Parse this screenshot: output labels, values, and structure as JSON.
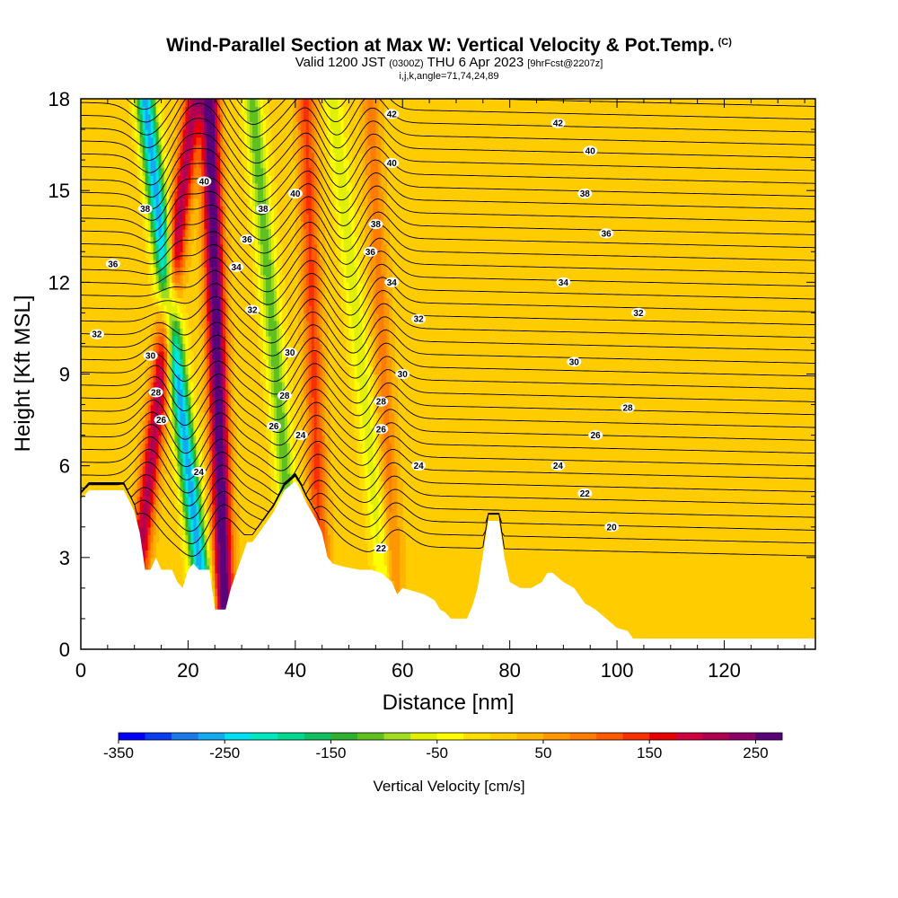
{
  "header": {
    "title": "Wind-Parallel Section at Max W: Vertical Velocity & Pot.Temp.",
    "copyright": "(C)",
    "valid_prefix": "Valid 1200 JST",
    "valid_zulu": "(0300Z)",
    "valid_date": "THU 6 Apr 2023",
    "forecast": "[9hrFcst@2207z]",
    "grid_info": "i,j,k,angle=71,74,24,89"
  },
  "chart_data": {
    "type": "heatmap",
    "xlabel": "Distance [nm]",
    "ylabel": "Height [Kft MSL]",
    "xlim": [
      0,
      137
    ],
    "ylim": [
      0,
      18
    ],
    "x_ticks": [
      0,
      20,
      40,
      60,
      80,
      100,
      120
    ],
    "y_ticks": [
      0,
      3,
      6,
      9,
      12,
      15,
      18
    ],
    "background_field": "Vertical Velocity [cm/s]",
    "background_value_cm_s": 10,
    "colorbar": {
      "label": "Vertical Velocity [cm/s]",
      "min": -350,
      "max": 275,
      "step": 25,
      "tick_labels": [
        "-350",
        "-250",
        "-150",
        "-50",
        "50",
        "150",
        "250"
      ],
      "colors": [
        "#0000ff",
        "#0b3cf0",
        "#1a78e8",
        "#12aaf0",
        "#00e0f0",
        "#00e8c0",
        "#00d890",
        "#10c060",
        "#30b030",
        "#60c020",
        "#a0dc20",
        "#e0f000",
        "#ffff00",
        "#ffe000",
        "#ffcc00",
        "#ffb400",
        "#ff9800",
        "#ff7c00",
        "#ff5a00",
        "#f83000",
        "#e80000",
        "#d00040",
        "#b00050",
        "#8c0068",
        "#5a0078"
      ]
    },
    "updraft_bands": [
      {
        "x_base": 9,
        "x_top": 21,
        "w_max": 200
      },
      {
        "x_base": 27,
        "x_top": 24,
        "w_max": 275
      },
      {
        "x_base": 45,
        "x_top": 42,
        "w_max": 120
      },
      {
        "x_base": 59,
        "x_top": 54,
        "w_max": 75
      }
    ],
    "downdraft_bands": [
      {
        "x_base": 24,
        "x_top": 12,
        "w_min": -275
      },
      {
        "x_base": 41,
        "x_top": 32,
        "w_min": -125
      },
      {
        "x_base": 58,
        "x_top": 47,
        "w_min": -75
      }
    ],
    "theta_contours": [
      {
        "value": 20,
        "label": "20",
        "label_x": 99,
        "label_y": 4.0
      },
      {
        "value": 22,
        "label": "22",
        "label_x": 56,
        "label_y": 3.3
      },
      {
        "value": 22,
        "label": "22",
        "label_x": 94,
        "label_y": 5.1
      },
      {
        "value": 24,
        "label": "24",
        "label_x": 22,
        "label_y": 5.8
      },
      {
        "value": 24,
        "label": "24",
        "label_x": 41,
        "label_y": 7.0
      },
      {
        "value": 24,
        "label": "24",
        "label_x": 63,
        "label_y": 6.0
      },
      {
        "value": 24,
        "label": "24",
        "label_x": 89,
        "label_y": 6.0
      },
      {
        "value": 26,
        "label": "26",
        "label_x": 15,
        "label_y": 7.5
      },
      {
        "value": 26,
        "label": "26",
        "label_x": 36,
        "label_y": 7.3
      },
      {
        "value": 26,
        "label": "26",
        "label_x": 56,
        "label_y": 7.2
      },
      {
        "value": 26,
        "label": "26",
        "label_x": 96,
        "label_y": 7.0
      },
      {
        "value": 28,
        "label": "28",
        "label_x": 14,
        "label_y": 8.4
      },
      {
        "value": 28,
        "label": "28",
        "label_x": 38,
        "label_y": 8.3
      },
      {
        "value": 28,
        "label": "28",
        "label_x": 56,
        "label_y": 8.1
      },
      {
        "value": 28,
        "label": "28",
        "label_x": 102,
        "label_y": 7.9
      },
      {
        "value": 30,
        "label": "30",
        "label_x": 13,
        "label_y": 9.6
      },
      {
        "value": 30,
        "label": "30",
        "label_x": 39,
        "label_y": 9.7
      },
      {
        "value": 30,
        "label": "30",
        "label_x": 60,
        "label_y": 9.0
      },
      {
        "value": 30,
        "label": "30",
        "label_x": 92,
        "label_y": 9.4
      },
      {
        "value": 32,
        "label": "32",
        "label_x": 3,
        "label_y": 10.3
      },
      {
        "value": 32,
        "label": "32",
        "label_x": 32,
        "label_y": 11.1
      },
      {
        "value": 32,
        "label": "32",
        "label_x": 63,
        "label_y": 10.8
      },
      {
        "value": 32,
        "label": "32",
        "label_x": 104,
        "label_y": 11.0
      },
      {
        "value": 34,
        "label": "34",
        "label_x": 29,
        "label_y": 12.5
      },
      {
        "value": 34,
        "label": "34",
        "label_x": 58,
        "label_y": 12.0
      },
      {
        "value": 34,
        "label": "34",
        "label_x": 90,
        "label_y": 12.0
      },
      {
        "value": 36,
        "label": "36",
        "label_x": 6,
        "label_y": 12.6
      },
      {
        "value": 36,
        "label": "36",
        "label_x": 31,
        "label_y": 13.4
      },
      {
        "value": 36,
        "label": "36",
        "label_x": 54,
        "label_y": 13.0
      },
      {
        "value": 36,
        "label": "36",
        "label_x": 98,
        "label_y": 13.6
      },
      {
        "value": 38,
        "label": "38",
        "label_x": 12,
        "label_y": 14.4
      },
      {
        "value": 38,
        "label": "38",
        "label_x": 34,
        "label_y": 14.4
      },
      {
        "value": 38,
        "label": "38",
        "label_x": 55,
        "label_y": 13.9
      },
      {
        "value": 38,
        "label": "38",
        "label_x": 94,
        "label_y": 14.9
      },
      {
        "value": 40,
        "label": "40",
        "label_x": 23,
        "label_y": 15.3
      },
      {
        "value": 40,
        "label": "40",
        "label_x": 40,
        "label_y": 14.9
      },
      {
        "value": 40,
        "label": "40",
        "label_x": 58,
        "label_y": 15.9
      },
      {
        "value": 40,
        "label": "40",
        "label_x": 95,
        "label_y": 16.3
      },
      {
        "value": 42,
        "label": "42",
        "label_x": 58,
        "label_y": 17.5
      },
      {
        "value": 42,
        "label": "42",
        "label_x": 89,
        "label_y": 17.2
      }
    ],
    "terrain": [
      [
        0,
        4.9
      ],
      [
        1.5,
        5.2
      ],
      [
        8,
        5.2
      ],
      [
        10,
        4.5
      ],
      [
        11,
        3.8
      ],
      [
        12,
        2.6
      ],
      [
        13,
        2.6
      ],
      [
        14,
        3.0
      ],
      [
        15,
        2.6
      ],
      [
        17,
        2.6
      ],
      [
        18,
        2.2
      ],
      [
        19,
        2.0
      ],
      [
        20,
        2.6
      ],
      [
        21,
        2.8
      ],
      [
        22,
        2.6
      ],
      [
        24,
        2.6
      ],
      [
        25,
        1.3
      ],
      [
        27,
        1.3
      ],
      [
        28,
        2.0
      ],
      [
        30,
        3.0
      ],
      [
        31,
        3.5
      ],
      [
        32,
        3.5
      ],
      [
        34,
        4.0
      ],
      [
        36,
        4.5
      ],
      [
        38,
        5.2
      ],
      [
        40,
        5.5
      ],
      [
        41,
        5.2
      ],
      [
        42,
        4.8
      ],
      [
        44,
        4.2
      ],
      [
        45,
        3.8
      ],
      [
        46,
        3.0
      ],
      [
        47,
        2.8
      ],
      [
        49,
        2.7
      ],
      [
        52,
        2.6
      ],
      [
        54,
        2.6
      ],
      [
        56,
        2.5
      ],
      [
        58,
        2.2
      ],
      [
        59,
        1.8
      ],
      [
        60,
        2.0
      ],
      [
        62,
        1.9
      ],
      [
        64,
        1.8
      ],
      [
        66,
        1.6
      ],
      [
        67,
        1.3
      ],
      [
        68,
        1.2
      ],
      [
        69,
        1.0
      ],
      [
        72,
        1.0
      ],
      [
        73,
        1.4
      ],
      [
        74,
        2.0
      ],
      [
        75,
        3.1
      ],
      [
        76,
        4.2
      ],
      [
        78,
        4.2
      ],
      [
        79,
        3.0
      ],
      [
        80,
        2.2
      ],
      [
        82,
        2.0
      ],
      [
        84,
        2.0
      ],
      [
        86,
        2.2
      ],
      [
        87,
        2.5
      ],
      [
        88,
        2.5
      ],
      [
        90,
        2.2
      ],
      [
        92,
        2.0
      ],
      [
        94,
        1.5
      ],
      [
        96,
        1.3
      ],
      [
        98,
        1.0
      ],
      [
        100,
        0.7
      ],
      [
        102,
        0.6
      ],
      [
        103,
        0.35
      ],
      [
        104,
        0.35
      ],
      [
        137,
        0.35
      ]
    ]
  }
}
